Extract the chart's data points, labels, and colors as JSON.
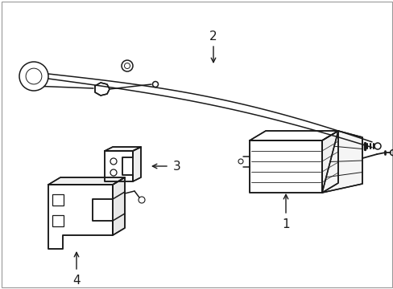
{
  "background_color": "#ffffff",
  "line_color": "#1a1a1a",
  "figsize": [
    4.89,
    3.6
  ],
  "dpi": 100,
  "border_color": "#aaaaaa"
}
